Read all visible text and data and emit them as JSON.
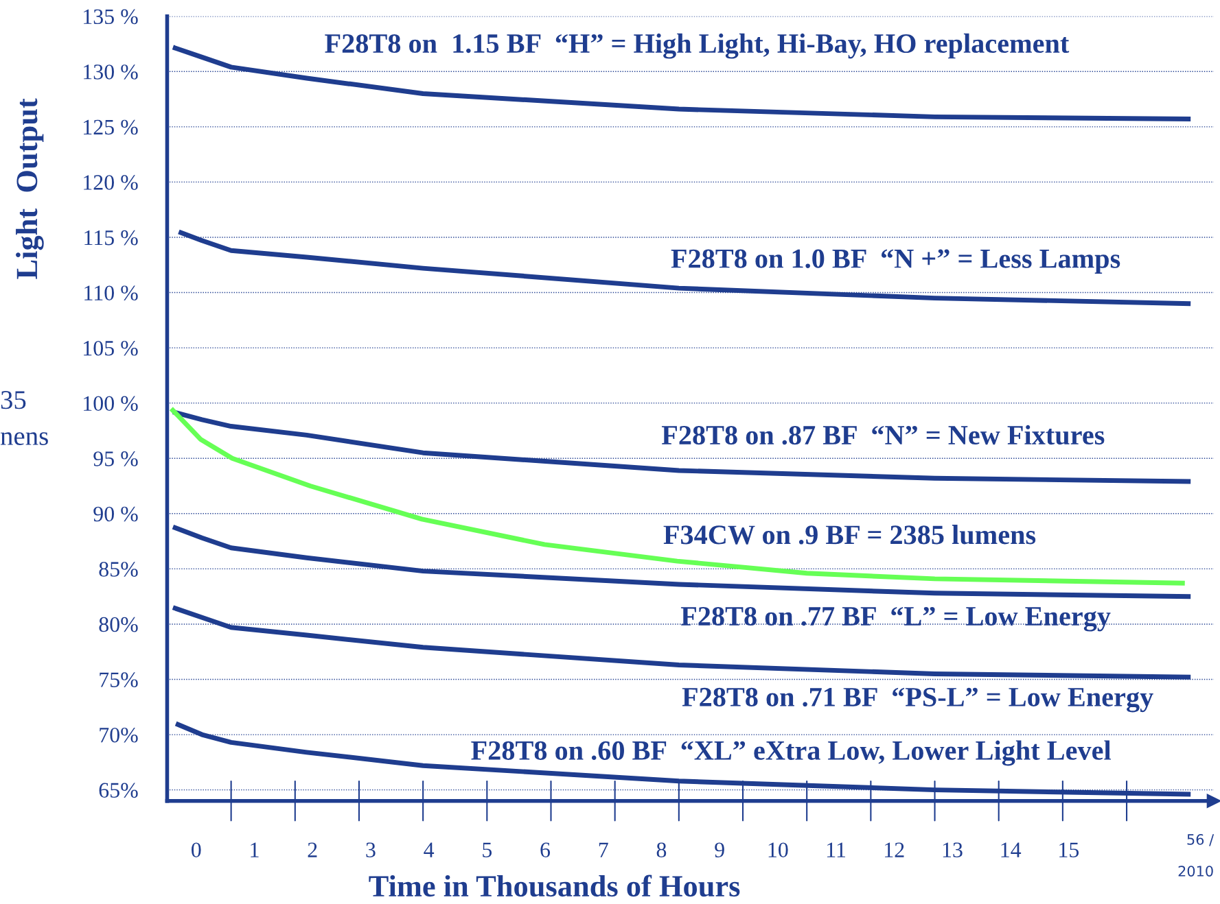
{
  "chart_data": {
    "type": "line",
    "xlabel": "Time in Thousands of Hours",
    "ylabel": "Light  Output",
    "x": [
      -0.4,
      0.1,
      0.6,
      1.9,
      3.9,
      8.3,
      12.7,
      17.1
    ],
    "series": [
      {
        "name": "F28T8 on  1.15 BF  “H” = High Light, Hi-Bay, HO replacement",
        "color": "#1f3d8f",
        "values": [
          132.2,
          131.3,
          130.4,
          129.4,
          128.0,
          126.6,
          125.9,
          125.7
        ]
      },
      {
        "name": "F28T8 on 1.0 BF  “N +” = Less Lamps",
        "color": "#1f3d8f",
        "x": [
          -0.3,
          0.1,
          0.6,
          1.9,
          3.9,
          8.3,
          12.7,
          17.1
        ],
        "values": [
          115.5,
          114.7,
          113.8,
          113.2,
          112.2,
          110.4,
          109.5,
          109.0
        ]
      },
      {
        "name": "F28T8 on .87 BF  “N” = New Fixtures",
        "color": "#1f3d8f",
        "values": [
          99.2,
          98.5,
          97.9,
          97.1,
          95.5,
          93.9,
          93.2,
          92.9
        ]
      },
      {
        "name": "F34CW on .9 BF = 2385 lumens",
        "color": "#66ff55",
        "x": [
          -0.43,
          0.08,
          0.62,
          1.96,
          3.88,
          5.99,
          8.27,
          10.5,
          12.7,
          17.0
        ],
        "values": [
          99.5,
          96.7,
          95.0,
          92.5,
          89.5,
          87.2,
          85.7,
          84.6,
          84.1,
          83.7
        ]
      },
      {
        "name": "F28T8 on .77 BF  “L” = Low Energy",
        "color": "#1f3d8f",
        "values": [
          88.8,
          87.8,
          86.9,
          86.0,
          84.8,
          83.6,
          82.8,
          82.5
        ]
      },
      {
        "name": "F28T8 on .71 BF  “PS-L” = Low Energy",
        "color": "#1f3d8f",
        "values": [
          81.5,
          80.6,
          79.7,
          79.0,
          77.9,
          76.3,
          75.5,
          75.2
        ]
      },
      {
        "name": "F28T8 on .60 BF  “XL” eXtra Low, Lower Light Level",
        "color": "#1f3d8f",
        "x": [
          -0.35,
          0.1,
          0.6,
          1.9,
          3.9,
          8.3,
          12.7,
          17.1
        ],
        "values": [
          71.0,
          70.0,
          69.3,
          68.4,
          67.2,
          65.8,
          65.0,
          64.6
        ]
      }
    ],
    "xlim": [
      -0.5,
      17.5
    ],
    "ylim": [
      64,
      135
    ],
    "xticks": [
      {
        "value": 0,
        "label": "0"
      },
      {
        "value": 1,
        "label": "1"
      },
      {
        "value": 2,
        "label": "2"
      },
      {
        "value": 3,
        "label": "3"
      },
      {
        "value": 4,
        "label": "4"
      },
      {
        "value": 5,
        "label": "5"
      },
      {
        "value": 6,
        "label": "6"
      },
      {
        "value": 7,
        "label": "7"
      },
      {
        "value": 8,
        "label": "8"
      },
      {
        "value": 9,
        "label": "9"
      },
      {
        "value": 10,
        "label": "10"
      },
      {
        "value": 11,
        "label": "11"
      },
      {
        "value": 12,
        "label": "12"
      },
      {
        "value": 13,
        "label": "13"
      },
      {
        "value": 14,
        "label": "14"
      },
      {
        "value": 15,
        "label": "15"
      }
    ],
    "yticks": [
      {
        "value": 135,
        "label": "135 %"
      },
      {
        "value": 130,
        "label": "130 %"
      },
      {
        "value": 125,
        "label": "125 %"
      },
      {
        "value": 120,
        "label": "120 %"
      },
      {
        "value": 115,
        "label": "115 %"
      },
      {
        "value": 110,
        "label": "110 %"
      },
      {
        "value": 105,
        "label": "105 %"
      },
      {
        "value": 100,
        "label": "100 %"
      },
      {
        "value": 95,
        "label": "95 %"
      },
      {
        "value": 90,
        "label": "90 %"
      },
      {
        "value": 85,
        "label": "85%"
      },
      {
        "value": 80,
        "label": "80%"
      },
      {
        "value": 75,
        "label": "75%"
      },
      {
        "value": 70,
        "label": "70%"
      },
      {
        "value": 65,
        "label": "65%"
      }
    ],
    "grid": "y",
    "line_style": "solid",
    "annotations": [
      "35",
      "nens",
      "56 /",
      "2010"
    ]
  }
}
